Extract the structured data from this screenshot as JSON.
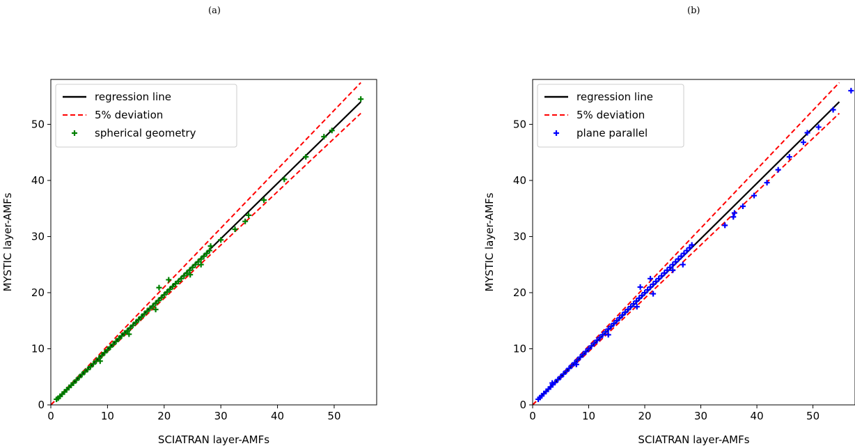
{
  "panels": {
    "a": {
      "label": "(a)",
      "chart_data": {
        "type": "scatter",
        "xlabel": "SCIATRAN layer-AMFs",
        "ylabel": "MYSTIC layer-AMFs",
        "xlim": [
          0,
          57.5
        ],
        "ylim": [
          0,
          58
        ],
        "xticks": [
          0,
          10,
          20,
          30,
          40,
          50
        ],
        "yticks": [
          0,
          10,
          20,
          30,
          40,
          50
        ],
        "legend_position": "upper-left",
        "regression": {
          "name": "regression line",
          "x": [
            1,
            54.7
          ],
          "y": [
            1,
            54
          ],
          "color": "#000000"
        },
        "deviation": {
          "name": "5% deviation",
          "upper_factor": 1.05,
          "lower_factor": 0.95,
          "x_range": [
            0,
            54.7
          ],
          "color": "#ff0000"
        },
        "series": [
          {
            "name": "spherical geometry",
            "marker": "plus",
            "color": "#008000",
            "points": [
              [
                1.0,
                1.0
              ],
              [
                1.3,
                1.2
              ],
              [
                1.6,
                1.5
              ],
              [
                2.0,
                1.9
              ],
              [
                2.4,
                2.3
              ],
              [
                2.8,
                2.7
              ],
              [
                3.2,
                3.1
              ],
              [
                3.6,
                3.5
              ],
              [
                4.0,
                3.9
              ],
              [
                4.5,
                4.4
              ],
              [
                5.0,
                4.9
              ],
              [
                5.5,
                5.4
              ],
              [
                6.0,
                5.9
              ],
              [
                6.5,
                6.3
              ],
              [
                7.0,
                6.8
              ],
              [
                7.5,
                7.3
              ],
              [
                8.0,
                7.8
              ],
              [
                8.5,
                8.3
              ],
              [
                9.0,
                8.8
              ],
              [
                9.5,
                9.3
              ],
              [
                10.0,
                9.8
              ],
              [
                10.5,
                10.3
              ],
              [
                11.0,
                10.8
              ],
              [
                11.5,
                11.3
              ],
              [
                12.0,
                11.8
              ],
              [
                12.5,
                12.3
              ],
              [
                13.0,
                12.8
              ],
              [
                13.5,
                13.2
              ],
              [
                14.0,
                13.7
              ],
              [
                14.5,
                14.2
              ],
              [
                15.0,
                14.7
              ],
              [
                15.5,
                15.2
              ],
              [
                16.0,
                15.7
              ],
              [
                16.5,
                16.2
              ],
              [
                17.0,
                16.7
              ],
              [
                17.5,
                17.2
              ],
              [
                18.0,
                17.6
              ],
              [
                18.5,
                18.1
              ],
              [
                19.0,
                18.6
              ],
              [
                19.5,
                19.1
              ],
              [
                20.0,
                19.6
              ],
              [
                20.5,
                20.1
              ],
              [
                21.0,
                20.6
              ],
              [
                21.5,
                21.1
              ],
              [
                22.0,
                21.6
              ],
              [
                22.5,
                22.0
              ],
              [
                23.0,
                22.5
              ],
              [
                23.5,
                23.0
              ],
              [
                24.0,
                23.5
              ],
              [
                24.5,
                24.0
              ],
              [
                25.0,
                24.5
              ],
              [
                25.5,
                25.0
              ],
              [
                26.0,
                25.5
              ],
              [
                26.5,
                26.0
              ],
              [
                27.0,
                26.5
              ],
              [
                27.5,
                27.0
              ],
              [
                28.0,
                27.5
              ],
              [
                8.7,
                7.8
              ],
              [
                13.8,
                12.6
              ],
              [
                18.5,
                17.0
              ],
              [
                19.1,
                20.9
              ],
              [
                20.8,
                22.3
              ],
              [
                24.6,
                23.2
              ],
              [
                26.5,
                25.0
              ],
              [
                28.2,
                28.3
              ],
              [
                30.0,
                29.4
              ],
              [
                32.5,
                31.3
              ],
              [
                34.3,
                32.7
              ],
              [
                34.9,
                33.8
              ],
              [
                37.6,
                36.5
              ],
              [
                41.2,
                40.2
              ],
              [
                45.0,
                44.2
              ],
              [
                48.2,
                47.8
              ],
              [
                49.6,
                48.9
              ],
              [
                54.7,
                54.5
              ]
            ]
          }
        ]
      }
    },
    "b": {
      "label": "(b)",
      "chart_data": {
        "type": "scatter",
        "xlabel": "SCIATRAN layer-AMFs",
        "ylabel": "MYSTIC layer-AMFs",
        "xlim": [
          0,
          57.5
        ],
        "ylim": [
          0,
          58
        ],
        "xticks": [
          0,
          10,
          20,
          30,
          40,
          50
        ],
        "yticks": [
          0,
          10,
          20,
          30,
          40,
          50
        ],
        "legend_position": "upper-left",
        "regression": {
          "name": "regression line",
          "x": [
            1,
            54.7
          ],
          "y": [
            1,
            54
          ],
          "color": "#000000"
        },
        "deviation": {
          "name": "5% deviation",
          "upper_factor": 1.05,
          "lower_factor": 0.95,
          "x_range": [
            0,
            54.7
          ],
          "color": "#ff0000"
        },
        "series": [
          {
            "name": "plane parallel",
            "marker": "plus",
            "color": "#0000ff",
            "points": [
              [
                1.0,
                1.0
              ],
              [
                1.3,
                1.3
              ],
              [
                1.6,
                1.6
              ],
              [
                2.0,
                2.0
              ],
              [
                2.4,
                2.4
              ],
              [
                2.8,
                2.8
              ],
              [
                3.2,
                3.2
              ],
              [
                3.6,
                3.6
              ],
              [
                4.0,
                4.0
              ],
              [
                4.5,
                4.5
              ],
              [
                5.0,
                5.0
              ],
              [
                5.5,
                5.5
              ],
              [
                6.0,
                6.0
              ],
              [
                6.5,
                6.5
              ],
              [
                7.0,
                7.0
              ],
              [
                7.5,
                7.5
              ],
              [
                8.0,
                8.0
              ],
              [
                8.5,
                8.5
              ],
              [
                9.0,
                9.0
              ],
              [
                9.5,
                9.5
              ],
              [
                10.0,
                10.0
              ],
              [
                10.5,
                10.5
              ],
              [
                11.0,
                11.0
              ],
              [
                11.5,
                11.5
              ],
              [
                12.0,
                12.0
              ],
              [
                12.5,
                12.5
              ],
              [
                13.0,
                13.0
              ],
              [
                13.5,
                13.5
              ],
              [
                14.0,
                14.0
              ],
              [
                14.5,
                14.5
              ],
              [
                15.0,
                15.0
              ],
              [
                15.5,
                15.5
              ],
              [
                16.0,
                16.0
              ],
              [
                16.5,
                16.5
              ],
              [
                17.0,
                17.0
              ],
              [
                17.5,
                17.5
              ],
              [
                18.0,
                18.0
              ],
              [
                18.5,
                18.5
              ],
              [
                19.0,
                19.0
              ],
              [
                19.5,
                19.5
              ],
              [
                20.0,
                20.0
              ],
              [
                20.5,
                20.5
              ],
              [
                21.0,
                21.0
              ],
              [
                21.5,
                21.5
              ],
              [
                22.0,
                22.0
              ],
              [
                22.5,
                22.5
              ],
              [
                23.0,
                23.0
              ],
              [
                23.5,
                23.5
              ],
              [
                24.0,
                24.0
              ],
              [
                24.5,
                24.5
              ],
              [
                25.0,
                25.0
              ],
              [
                25.5,
                25.5
              ],
              [
                26.0,
                26.0
              ],
              [
                26.5,
                26.5
              ],
              [
                27.0,
                27.0
              ],
              [
                27.5,
                27.5
              ],
              [
                28.0,
                28.0
              ],
              [
                28.4,
                28.5
              ],
              [
                3.5,
                3.9
              ],
              [
                7.8,
                7.2
              ],
              [
                13.5,
                12.5
              ],
              [
                18.6,
                17.5
              ],
              [
                19.2,
                21.0
              ],
              [
                21.0,
                22.5
              ],
              [
                21.5,
                19.8
              ],
              [
                25.0,
                24.0
              ],
              [
                26.8,
                25.0
              ],
              [
                34.3,
                32.0
              ],
              [
                35.8,
                33.5
              ],
              [
                36.0,
                34.2
              ],
              [
                37.5,
                35.4
              ],
              [
                39.5,
                37.3
              ],
              [
                41.8,
                39.6
              ],
              [
                43.8,
                41.9
              ],
              [
                45.8,
                44.2
              ],
              [
                48.3,
                46.8
              ],
              [
                49.0,
                48.5
              ],
              [
                51.0,
                49.5
              ],
              [
                53.6,
                52.6
              ],
              [
                56.8,
                56.0
              ]
            ]
          }
        ]
      }
    }
  }
}
